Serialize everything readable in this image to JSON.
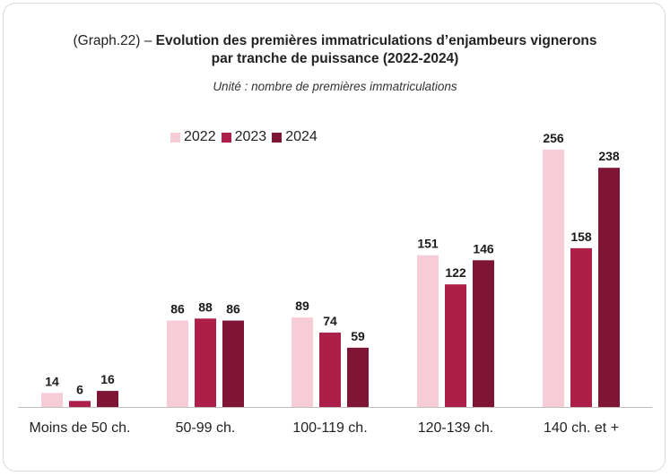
{
  "title_prefix": "(Graph.22) – ",
  "title_main": "Evolution des premières immatriculations d’enjambeurs vignerons",
  "title_line2": "par tranche de puissance (2022-2024)",
  "subtitle": "Unité : nombre de premières immatriculations",
  "colors": {
    "2022": "#f6ccd6",
    "2023": "#ad1f48",
    "2024": "#7f1535"
  },
  "chart_data": {
    "type": "bar",
    "title": "(Graph.22) – Evolution des premières immatriculations d’enjambeurs vignerons par tranche de puissance (2022-2024)",
    "subtitle": "Unité : nombre de premières immatriculations",
    "categories": [
      "Moins de 50 ch.",
      "50-99 ch.",
      "100-119 ch.",
      "120-139 ch.",
      "140 ch. et +"
    ],
    "series": [
      {
        "name": "2022",
        "values": [
          14,
          86,
          89,
          151,
          256
        ]
      },
      {
        "name": "2023",
        "values": [
          6,
          88,
          74,
          122,
          158
        ]
      },
      {
        "name": "2024",
        "values": [
          16,
          86,
          59,
          146,
          238
        ]
      }
    ],
    "ylim": [
      0,
      256
    ],
    "grid": false,
    "legend": "top-left",
    "data_labels": true
  }
}
